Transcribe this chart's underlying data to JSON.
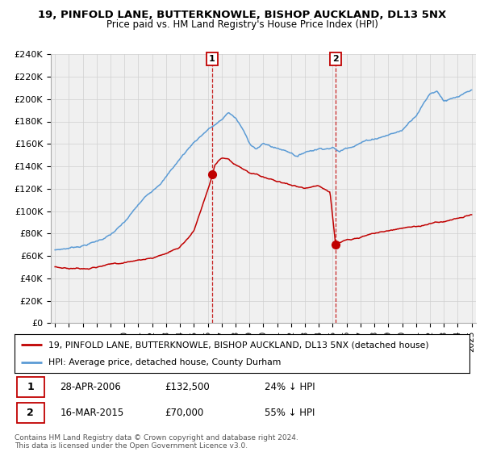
{
  "title1": "19, PINFOLD LANE, BUTTERKNOWLE, BISHOP AUCKLAND, DL13 5NX",
  "title2": "Price paid vs. HM Land Registry's House Price Index (HPI)",
  "ylabel_ticks": [
    "£0",
    "£20K",
    "£40K",
    "£60K",
    "£80K",
    "£100K",
    "£120K",
    "£140K",
    "£160K",
    "£180K",
    "£200K",
    "£220K",
    "£240K"
  ],
  "ylim": [
    0,
    240000
  ],
  "xlim_start": 1994.7,
  "xlim_end": 2025.3,
  "marker1_x": 2006.32,
  "marker1_y": 132500,
  "marker2_x": 2015.21,
  "marker2_y": 70000,
  "legend_line1": "19, PINFOLD LANE, BUTTERKNOWLE, BISHOP AUCKLAND, DL13 5NX (detached house)",
  "legend_line2": "HPI: Average price, detached house, County Durham",
  "ann1_date": "28-APR-2006",
  "ann1_price": "£132,500",
  "ann1_pct": "24% ↓ HPI",
  "ann2_date": "16-MAR-2015",
  "ann2_price": "£70,000",
  "ann2_pct": "55% ↓ HPI",
  "footer": "Contains HM Land Registry data © Crown copyright and database right 2024.\nThis data is licensed under the Open Government Licence v3.0.",
  "hpi_color": "#5b9bd5",
  "price_color": "#c00000",
  "bg_color": "#f0f0f0",
  "grid_color": "#d0d0d0"
}
